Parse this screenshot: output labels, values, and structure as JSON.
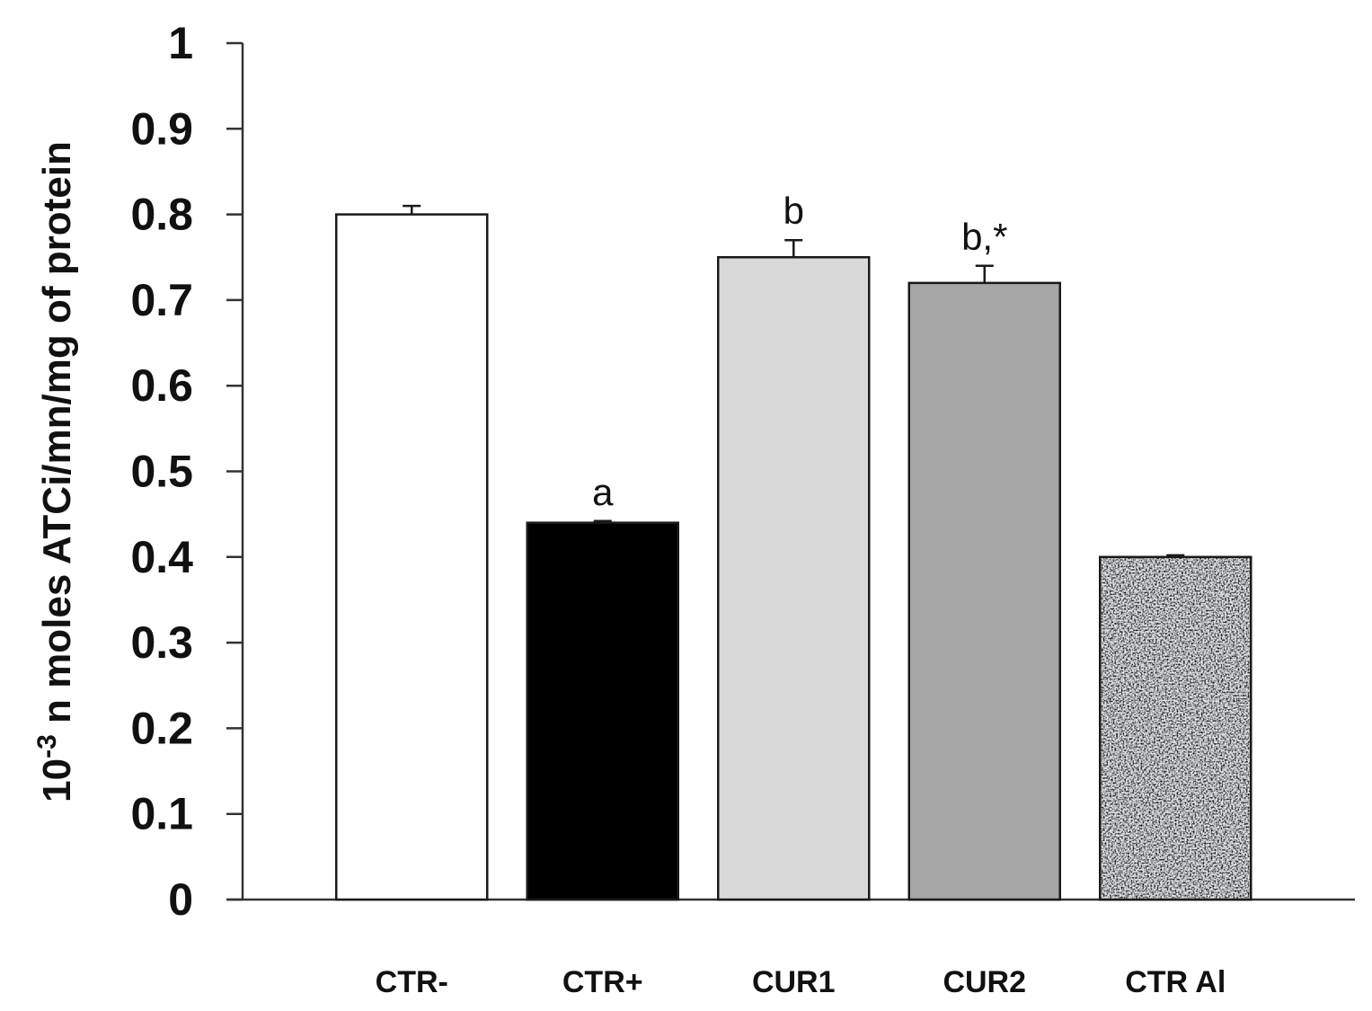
{
  "chart_data": {
    "type": "bar",
    "title": "",
    "xlabel": "",
    "ylabel_prefix": "10",
    "ylabel_exponent": "-3",
    "ylabel_rest": " n moles ATCi/mn/mg of protein",
    "ylim": [
      0,
      1
    ],
    "yticks": [
      "0",
      "0.1",
      "0.2",
      "0.3",
      "0.4",
      "0.5",
      "0.6",
      "0.7",
      "0.8",
      "0.9",
      "1"
    ],
    "categories": [
      "CTR-",
      "CTR+",
      "CUR1",
      "CUR2",
      "CTR Al"
    ],
    "values": [
      0.8,
      0.44,
      0.75,
      0.72,
      0.4
    ],
    "errors": [
      0.01,
      0.002,
      0.02,
      0.02,
      0.002
    ],
    "annotations": [
      "",
      "a",
      "b",
      "b,*",
      ""
    ],
    "colors": [
      "#ffffff",
      "#000000",
      "#d9d9d9",
      "#a6a6a6",
      "pattern"
    ]
  }
}
